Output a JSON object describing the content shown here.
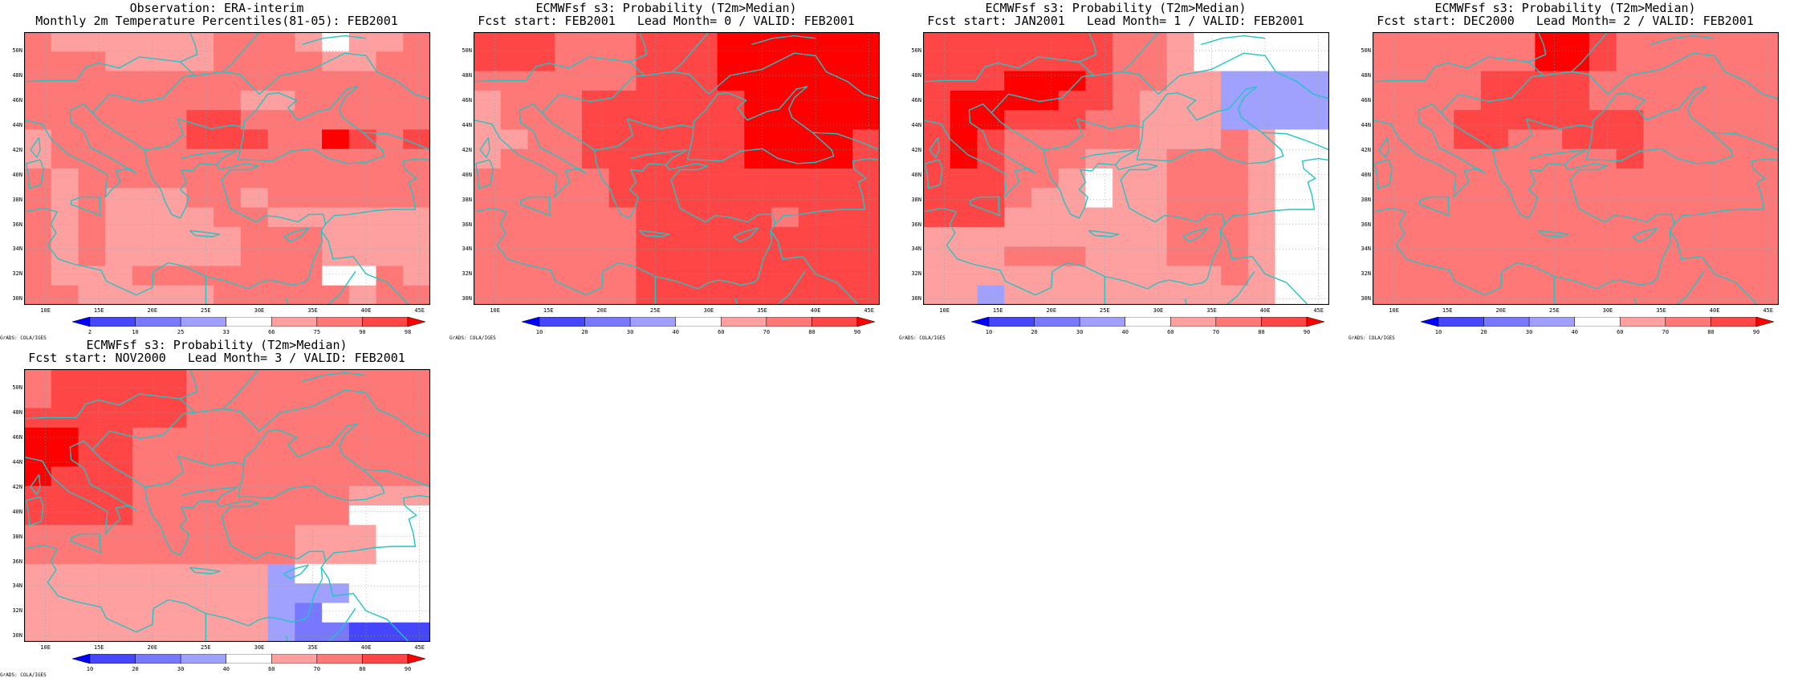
{
  "grid": {
    "lat_labels": [
      "50N",
      "48N",
      "46N",
      "44N",
      "42N",
      "40N",
      "38N",
      "36N",
      "34N",
      "32N",
      "30N"
    ],
    "lon_labels": [
      "10E",
      "15E",
      "20E",
      "25E",
      "30E",
      "35E",
      "40E",
      "45E"
    ],
    "lon_range": [
      8,
      46
    ],
    "lat_range": [
      29.5,
      51.5
    ]
  },
  "colors": {
    "prob_bins": [
      "#0000ff",
      "#4646ff",
      "#7878ff",
      "#a0a0ff",
      "#ffffff",
      "#ffa0a0",
      "#ff7878",
      "#ff4646",
      "#ff0000"
    ],
    "coast": "#22c4c4",
    "grid_line": "#9a9a9a"
  },
  "panels": [
    {
      "title1": "Observation: ERA-interim",
      "title2": "Monthly 2m Temperature Percentiles(81-05): FEB2001",
      "colorbar_labels": [
        "2",
        "10",
        "25",
        "33",
        "66",
        "75",
        "90",
        "98"
      ],
      "credit": "GrADS: COLA/IGES",
      "cells": [
        "655555566654556",
        "666555566665566",
        "666666666666666",
        "666666665566666",
        "666666776666666",
        "566666777668767",
        "566666666666666",
        "656666666666666",
        "656555665666666",
        "656555566555555",
        "656555556665555",
        "656555556665555",
        "655566666664465",
        "665555566666566"
      ]
    },
    {
      "title1": "ECMWFsf s3: Probability (T2m>Median)",
      "title2": "Fcst start: FEB2001   Lead Month= 0 / VALID: FEB2001",
      "colorbar_labels": [
        "10",
        "20",
        "30",
        "40",
        "60",
        "70",
        "80",
        "90"
      ],
      "credit": "GrADS: COLA/IGES",
      "cells": [
        "777666777888888",
        "777666777888888",
        "666666777888888",
        "566677777788888",
        "566677777788888",
        "556677777788887",
        "566677777788887",
        "666667777777777",
        "666667777777777",
        "666666777776777",
        "666666777777777",
        "666666777777777",
        "666666777777777",
        "666666777777777"
      ]
    },
    {
      "title1": "ECMWFsf s3: Probability (T2m>Median)",
      "title2": "Fcst start: JAN2001   Lead Month= 1 / VALID: FEB2001",
      "colorbar_labels": [
        "10",
        "20",
        "30",
        "40",
        "60",
        "70",
        "80",
        "90"
      ],
      "credit": "GrADS: COLA/IGES",
      "cells": [
        "777777766544444",
        "777777766544444",
        "777888766553333",
        "788887765553333",
        "788777665553333",
        "787666665556544",
        "787666555666544",
        "777665455666544",
        "777655455666544",
        "777555555666544",
        "555555555666544",
        "555666555666544",
        "555555555556544",
        "553555555555544"
      ]
    },
    {
      "title1": "ECMWFsf s3: Probability (T2m>Median)",
      "title2": "Fcst start: DEC2000   Lead Month= 2 / VALID: FEB2001",
      "colorbar_labels": [
        "10",
        "20",
        "30",
        "40",
        "60",
        "70",
        "80",
        "90"
      ],
      "credit": "GrADS: COLA/IGES",
      "cells": [
        "666666887666666",
        "666666887666666",
        "666677776666666",
        "666677776666666",
        "666777777766666",
        "666776677766666",
        "666666666766666",
        "666666666666666",
        "666666666666666",
        "666666666666666",
        "666666666666666",
        "666666666666666",
        "666666666666666",
        "666666666666666"
      ]
    },
    {
      "title1": "ECMWFsf s3: Probability (T2m>Median)",
      "title2": "Fcst start: NOV2000   Lead Month= 3 / VALID: FEB2001",
      "colorbar_labels": [
        "10",
        "20",
        "30",
        "40",
        "60",
        "70",
        "80",
        "90"
      ],
      "credit": "GrADS: COLA/IGES",
      "cells": [
        "677777666666666",
        "677777666666666",
        "777777666666666",
        "887766666666666",
        "887766666666666",
        "877766666666666",
        "777766666666555",
        "777766666666444",
        "666666666655544",
        "666666666655544",
        "555555555344444",
        "555555555333444",
        "555555555324444",
        "555555555322111"
      ]
    }
  ]
}
